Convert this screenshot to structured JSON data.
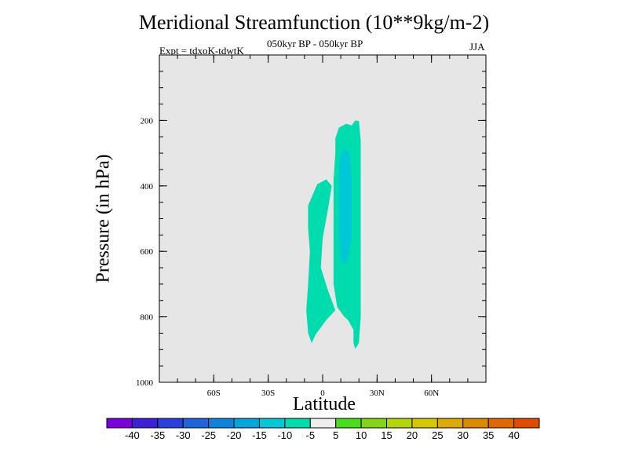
{
  "chart_data": {
    "type": "contour",
    "title": "Meridional Streamfunction (10**9kg/m-2)",
    "subtitle": "050kyr BP - 050kyr BP",
    "experiment": "Expt = tdxoK-tdwtK",
    "season": "JJA",
    "xlabel": "Latitude",
    "ylabel": "Pressure (in hPa)",
    "xlim": [
      -90,
      90
    ],
    "ylim": [
      0,
      1000
    ],
    "y_inverted": true,
    "x_ticks": [
      {
        "value": -60,
        "label": "60S"
      },
      {
        "value": -30,
        "label": "30S"
      },
      {
        "value": 0,
        "label": "0"
      },
      {
        "value": 30,
        "label": "30N"
      },
      {
        "value": 60,
        "label": "60N"
      }
    ],
    "y_ticks": [
      {
        "value": 200,
        "label": "200"
      },
      {
        "value": 400,
        "label": "400"
      },
      {
        "value": 600,
        "label": "600"
      },
      {
        "value": 800,
        "label": "800"
      },
      {
        "value": 1000,
        "label": "1000"
      }
    ],
    "background_color": "#e6e6e6",
    "regions": [
      {
        "name": "cell-sh",
        "level": -10,
        "color": "#00dcae",
        "points": [
          [
            -8,
            460
          ],
          [
            -3,
            395
          ],
          [
            2,
            380
          ],
          [
            5,
            400
          ],
          [
            3,
            470
          ],
          [
            0,
            560
          ],
          [
            -1,
            650
          ],
          [
            3,
            720
          ],
          [
            7,
            780
          ],
          [
            2,
            810
          ],
          [
            -4,
            855
          ],
          [
            -6,
            880
          ],
          [
            -8,
            850
          ],
          [
            -9,
            780
          ],
          [
            -8,
            700
          ],
          [
            -7,
            600
          ],
          [
            -8,
            530
          ]
        ]
      },
      {
        "name": "cell-nh-outer",
        "level": -10,
        "color": "#00dcae",
        "points": [
          [
            7,
            255
          ],
          [
            9,
            222
          ],
          [
            13,
            210
          ],
          [
            16,
            215
          ],
          [
            18,
            200
          ],
          [
            20,
            202
          ],
          [
            21,
            260
          ],
          [
            21,
            400
          ],
          [
            21,
            550
          ],
          [
            21,
            700
          ],
          [
            21,
            800
          ],
          [
            20,
            880
          ],
          [
            18,
            898
          ],
          [
            17,
            880
          ],
          [
            17,
            840
          ],
          [
            14,
            810
          ],
          [
            12,
            800
          ],
          [
            8,
            770
          ],
          [
            6,
            700
          ],
          [
            6,
            600
          ],
          [
            6,
            480
          ],
          [
            6,
            380
          ],
          [
            7,
            300
          ]
        ]
      },
      {
        "name": "cell-nh-inner",
        "level": -15,
        "color": "#00c8d6",
        "points": [
          [
            9,
            350
          ],
          [
            10,
            300
          ],
          [
            12,
            282
          ],
          [
            15,
            305
          ],
          [
            16,
            380
          ],
          [
            16,
            480
          ],
          [
            16,
            560
          ],
          [
            14,
            620
          ],
          [
            12,
            645
          ],
          [
            10,
            620
          ],
          [
            9,
            560
          ],
          [
            9,
            450
          ]
        ]
      }
    ],
    "colorbar": {
      "levels": [
        -40,
        -35,
        -30,
        -25,
        -20,
        -15,
        -10,
        -5,
        5,
        10,
        15,
        20,
        25,
        30,
        35,
        40
      ],
      "colors": [
        "#7a00dc",
        "#3c1fd6",
        "#2b3fde",
        "#1f64dc",
        "#1082dc",
        "#00a5dc",
        "#00c8d6",
        "#00dcae",
        "#eeeeee",
        "#4cdc1f",
        "#86d416",
        "#b4d40e",
        "#d4c800",
        "#dcaa00",
        "#dc8a00",
        "#e06800",
        "#e24a00"
      ],
      "labels": [
        "-40",
        "-35",
        "-30",
        "-25",
        "-20",
        "-15",
        "-10",
        "-5",
        "5",
        "10",
        "15",
        "20",
        "25",
        "30",
        "35",
        "40"
      ]
    }
  }
}
